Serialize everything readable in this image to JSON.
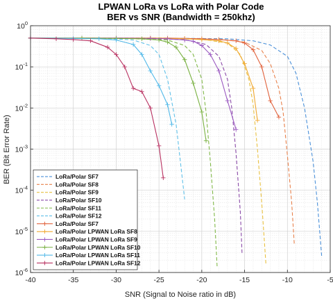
{
  "chart_data": {
    "type": "line",
    "title": "LPWAN LoRa vs LoRa with Polar Code",
    "subtitle": "BER vs SNR (Bandwidth = 250khz)",
    "xlabel": "SNR (Signal to Noise ratio in dB)",
    "ylabel": "BER (Bit Error Rate)",
    "xlim": [
      -40,
      -5
    ],
    "ylim": [
      1e-06,
      1
    ],
    "yscale": "log",
    "grid": true,
    "legend_position": "bottom-left",
    "x_ticks": [
      -40,
      -35,
      -30,
      -25,
      -20,
      -15,
      -10,
      -5
    ],
    "x_tick_labels": [
      "-40",
      "-35",
      "-30",
      "-25",
      "-20",
      "-15",
      "-10",
      "-5"
    ],
    "y_ticks": [
      1e-06,
      1e-05,
      0.0001,
      0.001,
      0.01,
      0.1,
      1
    ],
    "y_tick_labels": [
      {
        "base": "10",
        "exp": "-6"
      },
      {
        "base": "10",
        "exp": "-5"
      },
      {
        "base": "10",
        "exp": "-4"
      },
      {
        "base": "10",
        "exp": "-3"
      },
      {
        "base": "10",
        "exp": "-2"
      },
      {
        "base": "10",
        "exp": "-1"
      },
      {
        "base": "10",
        "exp": "0"
      }
    ],
    "series": [
      {
        "name": "LoRa/Polar SF7",
        "color": "#4a90d9",
        "style": "dashed",
        "marker": "none",
        "x": [
          -40,
          -25,
          -17,
          -14,
          -12,
          -10,
          -9,
          -8,
          -7,
          -6.5,
          -6
        ],
        "y": [
          0.5,
          0.5,
          0.48,
          0.43,
          0.34,
          0.18,
          0.07,
          0.01,
          0.0005,
          5e-05,
          2.5e-06
        ]
      },
      {
        "name": "LoRa/Polar SF8",
        "color": "#e8804a",
        "style": "dashed",
        "marker": "none",
        "x": [
          -40,
          -25,
          -18,
          -15,
          -13,
          -12,
          -11,
          -10.5,
          -10,
          -9.5,
          -9.2
        ],
        "y": [
          0.5,
          0.5,
          0.47,
          0.4,
          0.25,
          0.12,
          0.03,
          0.008,
          0.0007,
          5e-05,
          5e-06
        ]
      },
      {
        "name": "LoRa/Polar SF9",
        "color": "#e8c040",
        "style": "dashed",
        "marker": "none",
        "x": [
          -40,
          -26,
          -20,
          -17,
          -15.5,
          -14.5,
          -14,
          -13.5,
          -13,
          -12.5
        ],
        "y": [
          0.5,
          0.5,
          0.47,
          0.38,
          0.2,
          0.05,
          0.012,
          0.001,
          5e-05,
          1.5e-06
        ]
      },
      {
        "name": "LoRa/Polar SF10",
        "color": "#8a4aa8",
        "style": "dashed",
        "marker": "none",
        "x": [
          -40,
          -28,
          -22,
          -19.5,
          -18,
          -17,
          -16.5,
          -16,
          -15.5,
          -15.3
        ],
        "y": [
          0.5,
          0.5,
          0.46,
          0.35,
          0.18,
          0.05,
          0.01,
          0.0008,
          3e-05,
          3e-06
        ]
      },
      {
        "name": "LoRa/Polar SF11",
        "color": "#80b848",
        "style": "dashed",
        "marker": "none",
        "x": [
          -40,
          -30,
          -24,
          -22,
          -21,
          -20,
          -19.5,
          -19,
          -18.5,
          -18.2
        ],
        "y": [
          0.5,
          0.5,
          0.45,
          0.33,
          0.2,
          0.05,
          0.008,
          0.0005,
          2e-05,
          1.3e-06
        ]
      },
      {
        "name": "LoRa/Polar SF12",
        "color": "#60c0e8",
        "style": "dashed",
        "marker": "none",
        "x": [
          -40,
          -32,
          -28,
          -26,
          -25,
          -24,
          -23,
          -22.5,
          -22
        ],
        "y": [
          0.5,
          0.5,
          0.45,
          0.33,
          0.2,
          0.05,
          0.004,
          0.0005,
          6e-05
        ]
      },
      {
        "name": "LoRa/Polar SF7",
        "color": "#e0603a",
        "style": "solid",
        "marker": "plus",
        "x": [
          -40,
          -34,
          -30,
          -26,
          -24,
          -22,
          -20,
          -18,
          -16,
          -15,
          -14,
          -13,
          -12,
          -11
        ],
        "y": [
          0.5,
          0.5,
          0.5,
          0.5,
          0.5,
          0.49,
          0.48,
          0.46,
          0.43,
          0.38,
          0.26,
          0.1,
          0.015,
          0.006
        ]
      },
      {
        "name": "LoRa/Polar LPWAN LoRa SF8",
        "color": "#f0a830",
        "style": "solid",
        "marker": "plus",
        "x": [
          -40,
          -34,
          -30,
          -26,
          -24,
          -22,
          -20,
          -18,
          -17,
          -16,
          -15,
          -14,
          -13.5
        ],
        "y": [
          0.5,
          0.5,
          0.5,
          0.5,
          0.49,
          0.48,
          0.46,
          0.43,
          0.38,
          0.28,
          0.12,
          0.03,
          0.005
        ]
      },
      {
        "name": "LoRa/Polar LPWAN LoRa SF9",
        "color": "#9a58c0",
        "style": "solid",
        "marker": "plus",
        "x": [
          -40,
          -34,
          -30,
          -26,
          -24,
          -22,
          -21,
          -20,
          -19,
          -18,
          -17,
          -16
        ],
        "y": [
          0.5,
          0.5,
          0.5,
          0.49,
          0.48,
          0.45,
          0.42,
          0.33,
          0.2,
          0.08,
          0.015,
          0.003
        ]
      },
      {
        "name": "LoRa/Polar LPWAN LoRa SF10",
        "color": "#78b040",
        "style": "solid",
        "marker": "plus",
        "x": [
          -40,
          -34,
          -30,
          -27,
          -25,
          -24,
          -23,
          -22,
          -21,
          -20,
          -19.5
        ],
        "y": [
          0.5,
          0.5,
          0.49,
          0.48,
          0.45,
          0.4,
          0.3,
          0.15,
          0.04,
          0.008,
          0.0016
        ]
      },
      {
        "name": "LoRa/Polar LPWAN LoRa SF11",
        "color": "#50b8e8",
        "style": "solid",
        "marker": "plus",
        "x": [
          -40,
          -35,
          -32,
          -30,
          -28,
          -27,
          -26,
          -25,
          -24,
          -23.5
        ],
        "y": [
          0.5,
          0.49,
          0.48,
          0.45,
          0.35,
          0.2,
          0.08,
          0.035,
          0.012,
          0.004
        ]
      },
      {
        "name": "LoRa/Polar LPWAN LoRa SF12",
        "color": "#b83060",
        "style": "solid",
        "marker": "plus",
        "x": [
          -40,
          -37,
          -35,
          -33,
          -31,
          -30,
          -29,
          -28,
          -27,
          -26,
          -25,
          -24.5
        ],
        "y": [
          0.5,
          0.48,
          0.46,
          0.43,
          0.3,
          0.2,
          0.1,
          0.03,
          0.025,
          0.01,
          0.0012,
          0.0002
        ]
      }
    ]
  }
}
